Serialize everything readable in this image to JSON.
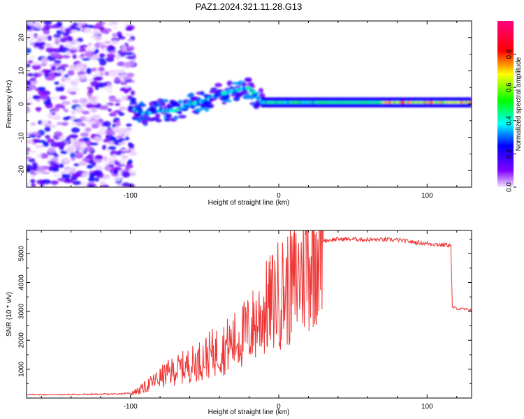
{
  "title": "PAZ1.2024.321.11.28.G13",
  "chart_data": [
    {
      "type": "heatmap",
      "xlabel": "Height of straight line (km)",
      "ylabel": "Frequency (Hz)",
      "xlim": [
        -170,
        130
      ],
      "ylim": [
        -25,
        25
      ],
      "xticks": [
        -100,
        0,
        100
      ],
      "yticks": [
        -20,
        -10,
        0,
        10,
        20
      ],
      "colorbar": {
        "label": "Normalized spectral amplitude",
        "range": [
          0,
          1
        ],
        "ticks": [
          0.0,
          0.2,
          0.4,
          0.6,
          0.8
        ]
      },
      "ridge": [
        {
          "x": -100,
          "y": -1
        },
        {
          "x": -90,
          "y": -3
        },
        {
          "x": -80,
          "y": -2
        },
        {
          "x": -70,
          "y": -2
        },
        {
          "x": -60,
          "y": 0
        },
        {
          "x": -50,
          "y": 1
        },
        {
          "x": -40,
          "y": 3
        },
        {
          "x": -30,
          "y": 4
        },
        {
          "x": -20,
          "y": 5
        },
        {
          "x": -15,
          "y": 2
        },
        {
          "x": -10,
          "y": 1
        },
        {
          "x": 0,
          "y": 0.5
        },
        {
          "x": 20,
          "y": 0.5
        },
        {
          "x": 60,
          "y": 0.5
        },
        {
          "x": 100,
          "y": 0.5
        },
        {
          "x": 130,
          "y": 0.5
        }
      ]
    },
    {
      "type": "line",
      "xlabel": "Height of straight line (km)",
      "ylabel": "SNR (10 * v/v)",
      "xlim": [
        -170,
        130
      ],
      "ylim": [
        0,
        5800
      ],
      "xticks": [
        -100,
        0,
        100
      ],
      "yticks": [
        1000,
        2000,
        3000,
        4000,
        5000
      ],
      "series": [
        {
          "color": "#ee3333",
          "x": [
            -170,
            -150,
            -130,
            -110,
            -100,
            -95,
            -90,
            -85,
            -80,
            -75,
            -70,
            -65,
            -60,
            -55,
            -50,
            -45,
            -40,
            -35,
            -30,
            -25,
            -20,
            -15,
            -10,
            -5,
            0,
            5,
            10,
            15,
            20,
            25,
            30,
            40,
            50,
            60,
            70,
            80,
            90,
            100,
            110,
            116,
            117,
            120,
            130
          ],
          "y": [
            120,
            120,
            130,
            140,
            170,
            250,
            380,
            550,
            700,
            850,
            950,
            1050,
            1150,
            1250,
            1400,
            1550,
            1650,
            1800,
            1950,
            2150,
            2350,
            2650,
            3000,
            3300,
            3600,
            3750,
            3900,
            4300,
            4800,
            5300,
            5450,
            5500,
            5500,
            5480,
            5480,
            5470,
            5400,
            5350,
            5300,
            5300,
            3150,
            3100,
            3050
          ]
        }
      ]
    }
  ]
}
